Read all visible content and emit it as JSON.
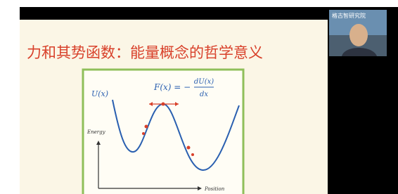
{
  "slide": {
    "title": "力和其势函数：能量概念的哲学意义",
    "figure": {
      "u_label": "U(x)",
      "formula_lhs": "F(x) = −",
      "formula_num": "dU(x)",
      "formula_den": "dx",
      "y_axis_label": "Energy",
      "x_axis_label": "Position"
    }
  },
  "video": {
    "watermark": "格古智研究院"
  }
}
